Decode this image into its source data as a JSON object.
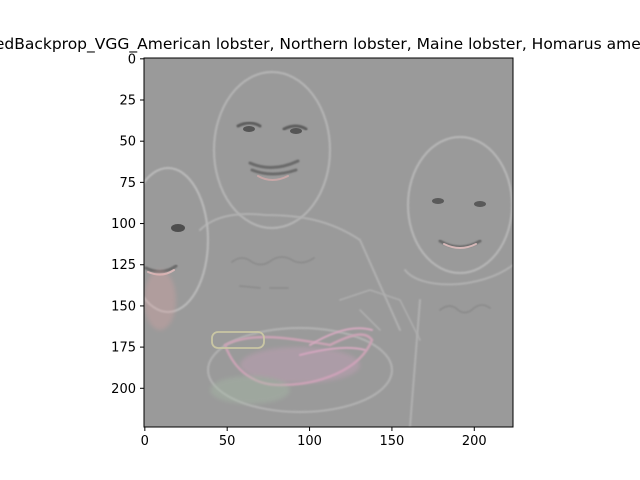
{
  "chart_data": {
    "type": "heatmap",
    "title": "GuidedBackprop_VGG_American lobster, Northern lobster, Maine lobster, Homarus americanus",
    "image_content": "guided backpropagation saliency map over a photo of three people with a lobster dinner",
    "xlim": [
      -0.5,
      223.5
    ],
    "ylim": [
      223.5,
      -0.5
    ],
    "xticks": [
      0,
      50,
      100,
      150,
      200
    ],
    "yticks": [
      0,
      25,
      50,
      75,
      100,
      125,
      150,
      175,
      200
    ],
    "background_color": "#9a9a9a",
    "grid": false,
    "legend": "none"
  }
}
